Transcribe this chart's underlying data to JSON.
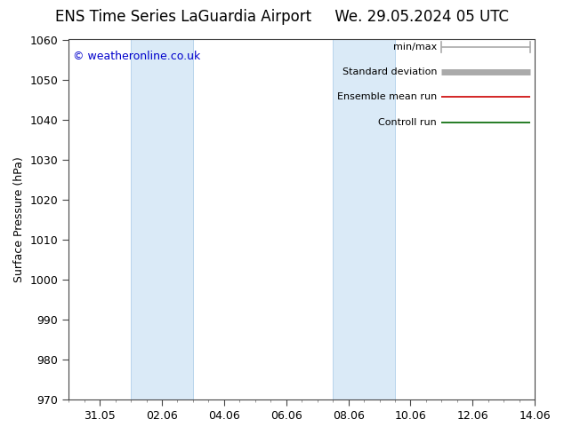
{
  "title_left": "ENS Time Series LaGuardia Airport",
  "title_right": "We. 29.05.2024 05 UTC",
  "ylabel": "Surface Pressure (hPa)",
  "ylim": [
    970,
    1060
  ],
  "yticks": [
    970,
    980,
    990,
    1000,
    1010,
    1020,
    1030,
    1040,
    1050,
    1060
  ],
  "xlim_start": 30.0,
  "xlim_end": 44.06,
  "xtick_labels": [
    "31.05",
    "02.06",
    "04.06",
    "06.06",
    "08.06",
    "10.06",
    "12.06",
    "14.06"
  ],
  "xtick_positions": [
    31.0,
    33.0,
    35.0,
    37.0,
    39.0,
    41.0,
    43.0,
    45.0
  ],
  "shaded_bands": [
    {
      "xmin": 32.0,
      "xmax": 34.0
    },
    {
      "xmin": 38.5,
      "xmax": 40.5
    }
  ],
  "shade_color": "#daeaf7",
  "watermark": "© weatheronline.co.uk",
  "legend_items": [
    {
      "label": "min/max",
      "color": "#aaaaaa",
      "lw": 1.2,
      "thick": false
    },
    {
      "label": "Standard deviation",
      "color": "#aaaaaa",
      "lw": 5,
      "thick": true
    },
    {
      "label": "Ensemble mean run",
      "color": "#cc0000",
      "lw": 1.2,
      "thick": false
    },
    {
      "label": "Controll run",
      "color": "#006600",
      "lw": 1.2,
      "thick": false
    }
  ],
  "bg_color": "#ffffff",
  "plot_bg_color": "#ffffff",
  "title_fontsize": 12,
  "axis_label_fontsize": 9,
  "tick_fontsize": 9,
  "watermark_color": "#0000cc",
  "watermark_fontsize": 9,
  "legend_fontsize": 8
}
